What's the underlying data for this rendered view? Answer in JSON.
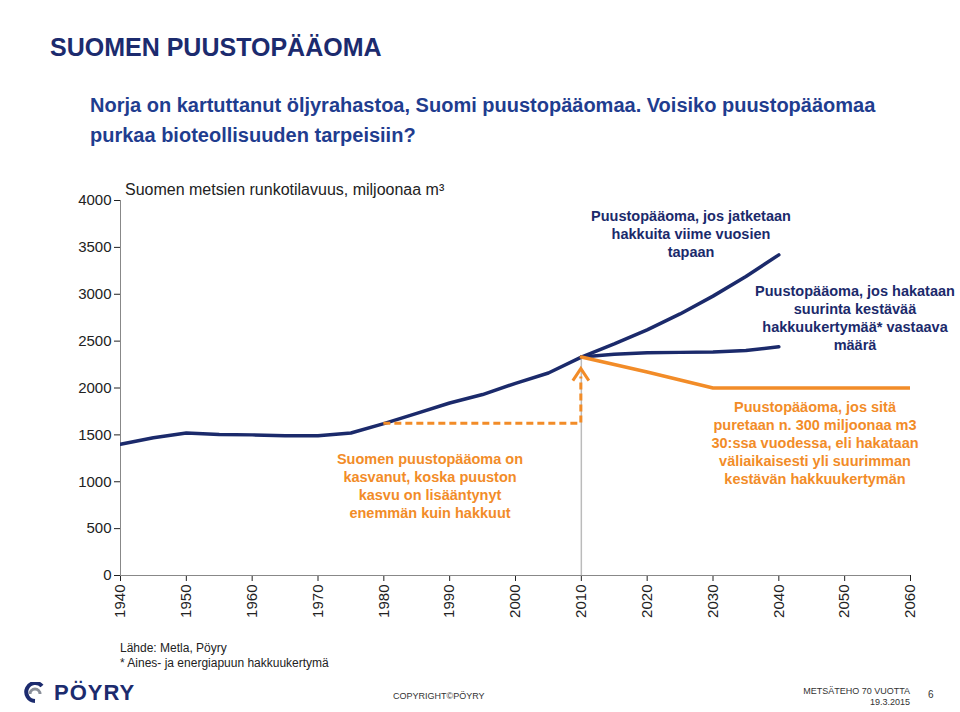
{
  "chart_data": {
    "type": "line",
    "title": "SUOMEN PUUSTOPÄÄOMA",
    "subtitle": "Norja on kartuttanut öljyrahastoa, Suomi puustopääomaa. Voisiko puustopääomaa purkaa bioteollisuuden tarpeisiin?",
    "y_label": "Suomen metsien runkotilavuus, miljoonaa m³",
    "x": [
      1940,
      1945,
      1950,
      1955,
      1960,
      1965,
      1970,
      1975,
      1980,
      1985,
      1990,
      1995,
      2000,
      2005,
      2010,
      2015,
      2020,
      2025,
      2030,
      2035,
      2040,
      2045,
      2050,
      2055,
      2060
    ],
    "xlim": [
      1940,
      2060
    ],
    "xticks": [
      1940,
      1950,
      1960,
      1970,
      1980,
      1990,
      2000,
      2010,
      2020,
      2030,
      2040,
      2050,
      2060
    ],
    "ylim": [
      0,
      4000
    ],
    "yticks": [
      0,
      500,
      1000,
      1500,
      2000,
      2500,
      3000,
      3500,
      4000
    ],
    "grid": false,
    "series": [
      {
        "color": "#1b2a6b",
        "values": [
          1400,
          1470,
          1520,
          1505,
          1500,
          1490,
          1490,
          1520,
          1620,
          1730,
          1840,
          1930,
          2050,
          2160,
          2330,
          null,
          null,
          null,
          null,
          null,
          null,
          null,
          null,
          null,
          null
        ]
      },
      {
        "name": "Puustopääoma, jos jatketaan hakkuita viime vuosien tapaan",
        "color": "#1b2a6b",
        "values": [
          null,
          null,
          null,
          null,
          null,
          null,
          null,
          null,
          null,
          null,
          null,
          null,
          null,
          null,
          2330,
          2470,
          2620,
          2790,
          2980,
          3190,
          3420,
          null,
          null,
          null,
          null
        ]
      },
      {
        "name": "Puustopääoma, jos hakataan suurinta kestävää hakkuukertymää* vastaava määrä",
        "color": "#1b2a6b",
        "values": [
          null,
          null,
          null,
          null,
          null,
          null,
          null,
          null,
          null,
          null,
          null,
          null,
          null,
          null,
          2330,
          2360,
          2375,
          2380,
          2385,
          2400,
          2440,
          null,
          null,
          null,
          null
        ]
      },
      {
        "name": "Puustopääoma, jos sitä puretaan n. 300 miljoonaa m3 30:ssa vuodessa, eli hakataan väliaikaisesti yli suurimman kestävän hakkuukertymän",
        "color": "#f28c28",
        "values": [
          null,
          null,
          null,
          null,
          null,
          null,
          null,
          null,
          null,
          null,
          null,
          null,
          null,
          null,
          2330,
          2250,
          2170,
          2085,
          2000,
          2000,
          2000,
          2000,
          2000,
          2000,
          2000
        ]
      }
    ],
    "annotations": [
      {
        "text": "Suomen puustopääoma on kasvanut, koska puuston kasvu on lisääntynyt enemmän kuin hakkuut",
        "color": "#f28c28"
      }
    ],
    "source": "Lähde: Metla, Pöyry",
    "footnote": "* Aines- ja energiapuun hakkuukertymä"
  },
  "footer": {
    "logo": "PÖYRY",
    "copyright": "COPYRIGHT©PÖYRY",
    "event": "METSÄTEHO 70 VUOTTA",
    "date": "19.3.2015",
    "page": 6
  }
}
